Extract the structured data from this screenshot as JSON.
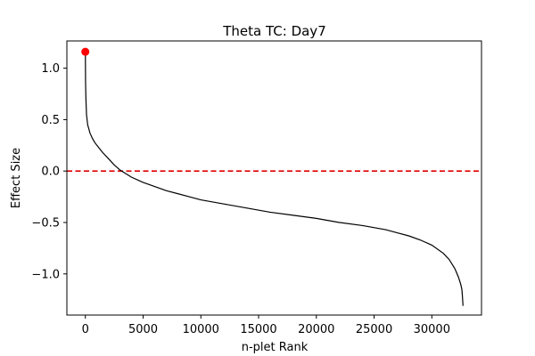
{
  "chart_data": {
    "type": "line",
    "title": "Theta TC: Day7",
    "xlabel": "n-plet Rank",
    "ylabel": "Effect Size",
    "xlim": [
      -1600,
      34300
    ],
    "ylim": [
      -1.4,
      1.265
    ],
    "grid": false,
    "x_ticks": [
      0,
      5000,
      10000,
      15000,
      20000,
      25000,
      30000
    ],
    "x_tick_labels": [
      "0",
      "5000",
      "10000",
      "15000",
      "20000",
      "25000",
      "30000"
    ],
    "y_ticks": [
      1.0,
      0.5,
      0.0,
      -0.5,
      -1.0
    ],
    "y_tick_labels": [
      "1.0",
      "0.5",
      "0.0",
      "−0.5",
      "−1.0"
    ],
    "series": [
      {
        "color": "#000000",
        "x": [
          0,
          20,
          50,
          100,
          200,
          400,
          600,
          800,
          1000,
          1500,
          2000,
          2500,
          3000,
          4000,
          5000,
          6000,
          7000,
          8000,
          9000,
          10000,
          12000,
          14000,
          16000,
          18000,
          20000,
          22000,
          24000,
          26000,
          27000,
          28000,
          29000,
          30000,
          31000,
          31500,
          32000,
          32300,
          32500,
          32600,
          32650,
          32700
        ],
        "y": [
          1.16,
          0.85,
          0.7,
          0.55,
          0.45,
          0.37,
          0.32,
          0.28,
          0.25,
          0.18,
          0.12,
          0.06,
          0.01,
          -0.06,
          -0.11,
          -0.15,
          -0.19,
          -0.22,
          -0.25,
          -0.28,
          -0.32,
          -0.36,
          -0.4,
          -0.43,
          -0.46,
          -0.5,
          -0.53,
          -0.57,
          -0.6,
          -0.63,
          -0.67,
          -0.72,
          -0.8,
          -0.86,
          -0.95,
          -1.03,
          -1.1,
          -1.15,
          -1.22,
          -1.31
        ]
      }
    ],
    "reference_line": {
      "y": 0.0,
      "color": "#e00000",
      "style": "dashed"
    },
    "marker": {
      "x": 0,
      "y": 1.16,
      "color": "#ff0000"
    }
  }
}
